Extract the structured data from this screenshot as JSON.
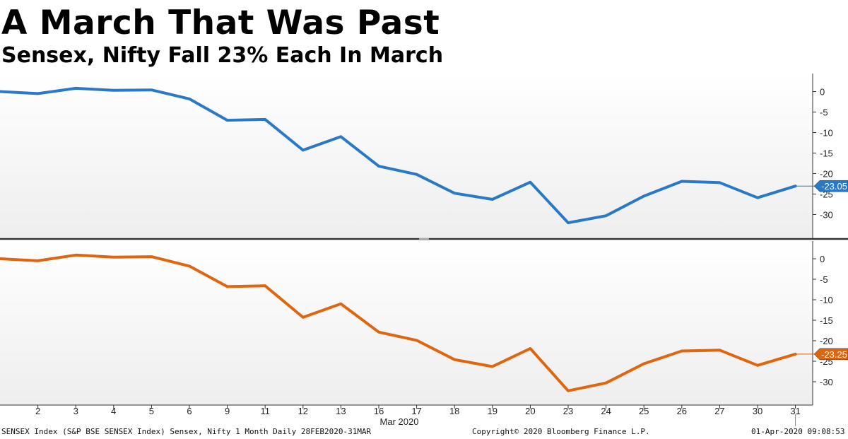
{
  "title": "A March That Was Past",
  "subtitle": "Sensex, Nifty Fall 23% Each In March",
  "chart_data": [
    {
      "type": "line",
      "series": [
        {
          "color": "#2a78c8",
          "last_value_label": "-23.05"
        }
      ],
      "x": [
        "28",
        "2",
        "3",
        "4",
        "5",
        "6",
        "9",
        "11",
        "12",
        "13",
        "16",
        "17",
        "18",
        "19",
        "20",
        "23",
        "24",
        "25",
        "26",
        "27",
        "30",
        "31"
      ],
      "y": [
        0,
        -0.5,
        0.8,
        0.3,
        0.4,
        -1.8,
        -7.0,
        -6.8,
        -14.3,
        -11.0,
        -18.2,
        -20.2,
        -24.8,
        -26.3,
        -22.1,
        -32.0,
        -30.3,
        -25.5,
        -21.9,
        -22.2,
        -25.9,
        -23.05
      ],
      "ylim": [
        -35,
        4
      ],
      "yticks": [
        0,
        -5,
        -10,
        -15,
        -20,
        -25,
        -30
      ],
      "grid": false
    },
    {
      "type": "line",
      "series": [
        {
          "color": "#e0650f",
          "last_value_label": "-23.25"
        }
      ],
      "x": [
        "28",
        "2",
        "3",
        "4",
        "5",
        "6",
        "9",
        "11",
        "12",
        "13",
        "16",
        "17",
        "18",
        "19",
        "20",
        "23",
        "24",
        "25",
        "26",
        "27",
        "30",
        "31"
      ],
      "y": [
        0,
        -0.5,
        0.9,
        0.4,
        0.5,
        -1.8,
        -6.8,
        -6.6,
        -14.3,
        -11.0,
        -17.9,
        -19.9,
        -24.6,
        -26.3,
        -21.9,
        -32.2,
        -30.3,
        -25.6,
        -22.5,
        -22.3,
        -26.0,
        -23.25
      ],
      "ylim": [
        -35,
        4
      ],
      "yticks": [
        0,
        -5,
        -10,
        -15,
        -20,
        -25,
        -30
      ],
      "grid": false
    }
  ],
  "xaxis": {
    "tick_labels": [
      "2",
      "3",
      "4",
      "5",
      "6",
      "9",
      "11",
      "12",
      "13",
      "16",
      "17",
      "18",
      "19",
      "20",
      "23",
      "24",
      "25",
      "26",
      "27",
      "30",
      "31"
    ],
    "label": "Mar 2020"
  },
  "footer": {
    "left": "SENSEX Index (S&P BSE SENSEX Index) Sensex, Nifty 1 Month  Daily 28FEB2020-31MAR",
    "center": "Copyright© 2020 Bloomberg Finance L.P.",
    "right": "01-Apr-2020 09:08:53"
  }
}
